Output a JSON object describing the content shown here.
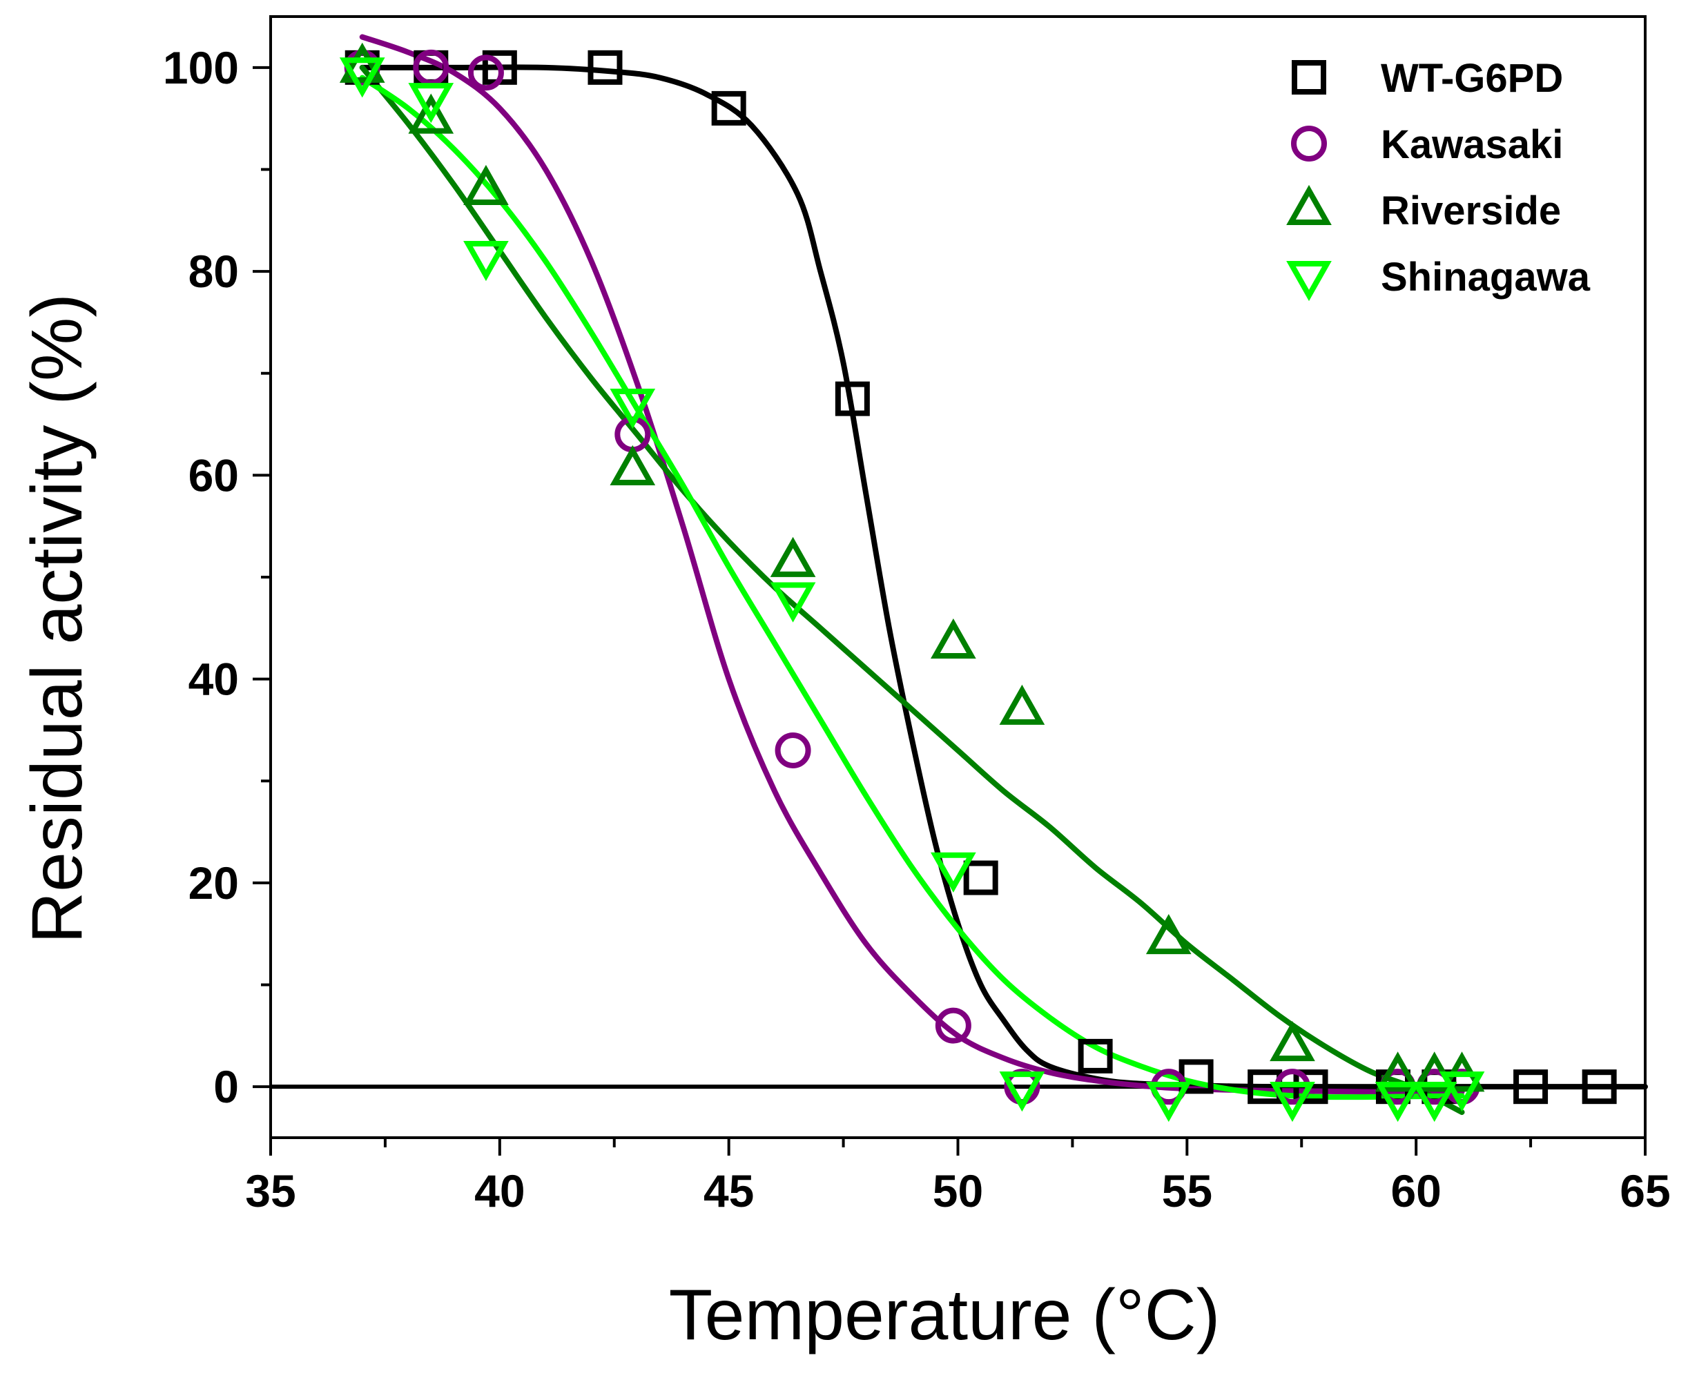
{
  "chart_data": {
    "type": "scatter",
    "title": "",
    "xlabel": "Temperature (°C)",
    "ylabel": "Residual activity (%)",
    "xlim": [
      35,
      65
    ],
    "ylim": [
      -5,
      105
    ],
    "xticks": [
      35,
      40,
      45,
      50,
      55,
      60,
      65
    ],
    "yticks": [
      0,
      20,
      40,
      60,
      80,
      100
    ],
    "x_minor_step": 2.5,
    "y_minor_step": 10,
    "grid": false,
    "legend_position": "top-right",
    "series": [
      {
        "name": "WT-G6PD",
        "marker": "square",
        "color": "#000000",
        "points": [
          [
            37,
            100
          ],
          [
            38.5,
            100
          ],
          [
            40,
            100
          ],
          [
            42.3,
            100
          ],
          [
            45,
            96
          ],
          [
            47.7,
            67.5
          ],
          [
            50.5,
            20.5
          ],
          [
            53,
            3
          ],
          [
            55.2,
            1
          ],
          [
            56.7,
            0
          ],
          [
            57.7,
            0
          ],
          [
            59.5,
            0
          ],
          [
            60.5,
            0
          ],
          [
            62.5,
            0
          ],
          [
            64,
            0
          ]
        ],
        "fit": [
          [
            37,
            100
          ],
          [
            39,
            100
          ],
          [
            41,
            100
          ],
          [
            42.5,
            99.6
          ],
          [
            43.5,
            99
          ],
          [
            44.5,
            97.4
          ],
          [
            45.5,
            94.3
          ],
          [
            46.5,
            87.6
          ],
          [
            47,
            80
          ],
          [
            47.5,
            71
          ],
          [
            48,
            58
          ],
          [
            48.5,
            45
          ],
          [
            49,
            34
          ],
          [
            49.5,
            24
          ],
          [
            50,
            16
          ],
          [
            50.5,
            10
          ],
          [
            51,
            6.5
          ],
          [
            51.5,
            3.6
          ],
          [
            52,
            2
          ],
          [
            53,
            0.8
          ],
          [
            54,
            0.3
          ],
          [
            56,
            0.05
          ],
          [
            58,
            0
          ],
          [
            61,
            0
          ],
          [
            63,
            0
          ],
          [
            65,
            0
          ]
        ]
      },
      {
        "name": "Kawasaki",
        "marker": "circle",
        "color": "#800080",
        "points": [
          [
            37,
            100
          ],
          [
            38.5,
            100
          ],
          [
            39.7,
            99.5
          ],
          [
            42.9,
            64
          ],
          [
            46.4,
            33
          ],
          [
            49.9,
            6
          ],
          [
            51.4,
            0
          ],
          [
            54.6,
            0
          ],
          [
            57.3,
            0
          ],
          [
            59.6,
            0
          ],
          [
            60.4,
            0
          ],
          [
            61,
            0
          ]
        ],
        "fit": [
          [
            37,
            103
          ],
          [
            38,
            101.5
          ],
          [
            39,
            99.5
          ],
          [
            40,
            96
          ],
          [
            41,
            90
          ],
          [
            42,
            81
          ],
          [
            43,
            69
          ],
          [
            44,
            55
          ],
          [
            45,
            40
          ],
          [
            46,
            29
          ],
          [
            47,
            21
          ],
          [
            48,
            14
          ],
          [
            49,
            9
          ],
          [
            50,
            5
          ],
          [
            51,
            2.8
          ],
          [
            52,
            1.4
          ],
          [
            53,
            0.6
          ],
          [
            54,
            0.1
          ],
          [
            55,
            -0.2
          ],
          [
            57,
            -0.4
          ],
          [
            59,
            -0.5
          ],
          [
            61,
            -0.5
          ]
        ]
      },
      {
        "name": "Riverside",
        "marker": "triangle-up",
        "color": "#008000",
        "points": [
          [
            37,
            100
          ],
          [
            38.5,
            95
          ],
          [
            39.7,
            88
          ],
          [
            42.9,
            60.5
          ],
          [
            46.4,
            51.5
          ],
          [
            49.9,
            43.5
          ],
          [
            51.4,
            37
          ],
          [
            54.6,
            14.5
          ],
          [
            57.3,
            4
          ],
          [
            59.6,
            1
          ],
          [
            60.4,
            1
          ],
          [
            61,
            1
          ]
        ],
        "fit": [
          [
            37,
            100
          ],
          [
            38,
            94.5
          ],
          [
            39,
            88.5
          ],
          [
            40,
            82
          ],
          [
            41,
            75.5
          ],
          [
            42,
            69.5
          ],
          [
            43,
            64
          ],
          [
            44,
            58.5
          ],
          [
            45,
            53.5
          ],
          [
            46,
            49
          ],
          [
            47,
            45
          ],
          [
            48,
            41
          ],
          [
            49,
            37
          ],
          [
            50,
            33
          ],
          [
            51,
            29
          ],
          [
            52,
            25.5
          ],
          [
            53,
            21.5
          ],
          [
            54,
            18
          ],
          [
            55,
            14
          ],
          [
            56,
            10.5
          ],
          [
            57,
            7
          ],
          [
            58,
            4
          ],
          [
            59,
            1.5
          ],
          [
            60,
            -0.2
          ],
          [
            61,
            -2.5
          ]
        ]
      },
      {
        "name": "Shinagawa",
        "marker": "triangle-down",
        "color": "#00ff00",
        "points": [
          [
            37,
            99.5
          ],
          [
            38.5,
            97
          ],
          [
            39.7,
            81.5
          ],
          [
            42.9,
            67
          ],
          [
            46.4,
            48
          ],
          [
            49.9,
            21.5
          ],
          [
            51.4,
            0
          ],
          [
            54.6,
            -1
          ],
          [
            57.3,
            -1
          ],
          [
            59.6,
            -1
          ],
          [
            60.4,
            -1
          ],
          [
            61,
            0
          ]
        ],
        "fit": [
          [
            37,
            99
          ],
          [
            38,
            96
          ],
          [
            39,
            92
          ],
          [
            40,
            87
          ],
          [
            41,
            81
          ],
          [
            42,
            74
          ],
          [
            43,
            66.5
          ],
          [
            44,
            59
          ],
          [
            45,
            51
          ],
          [
            46,
            43.5
          ],
          [
            47,
            36
          ],
          [
            48,
            28.5
          ],
          [
            49,
            21.5
          ],
          [
            50,
            15.5
          ],
          [
            51,
            10.5
          ],
          [
            52,
            6.8
          ],
          [
            53,
            3.9
          ],
          [
            54,
            2
          ],
          [
            55,
            0.6
          ],
          [
            56,
            -0.3
          ],
          [
            57,
            -0.8
          ],
          [
            58,
            -1
          ],
          [
            59,
            -1
          ],
          [
            61,
            -0.9
          ]
        ]
      }
    ]
  }
}
